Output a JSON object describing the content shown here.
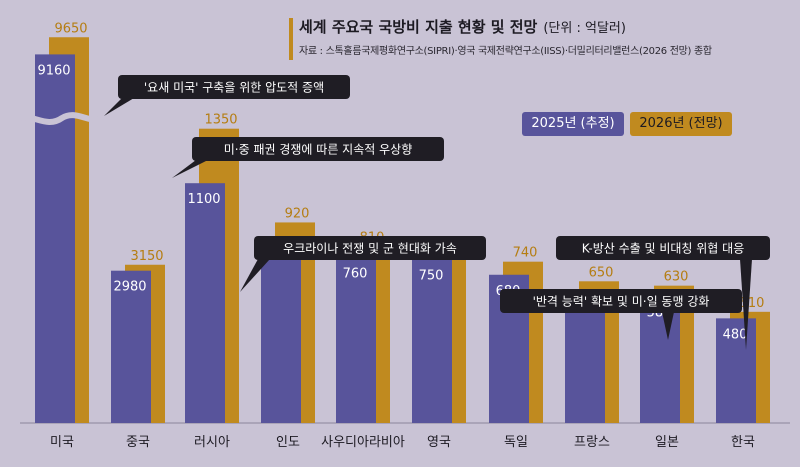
{
  "title": "세계 주요국 국방비 지출 현황 및 전망",
  "unit": "(단위 : 억달러)",
  "source": "자료 : 스톡홀름국제평화연구소(SIPRI)·영국 국제전략연구소(IISS)·더밀리터리밸런스(2026 전망) 종합",
  "colors": {
    "s2025": "#58549b",
    "s2026": "#c08a1f",
    "callout_bg": "#1f1d24",
    "callout_text": "#ffffff"
  },
  "chart_data": {
    "type": "bar",
    "categories": [
      "미국",
      "중국",
      "러시아",
      "인도",
      "사우디아라비아",
      "영국",
      "독일",
      "프랑스",
      "일본",
      "한국"
    ],
    "series": [
      {
        "name": "2025년 (추정)",
        "values": [
          9160,
          2980,
          1100,
          840,
          760,
          750,
          680,
          610,
          580,
          480
        ]
      },
      {
        "name": "2026년 (전망)",
        "values": [
          9650,
          3150,
          1350,
          920,
          810,
          790,
          740,
          650,
          630,
          510
        ]
      }
    ],
    "y_axis_break": true,
    "legend_position": "top-right",
    "annotations": [
      {
        "category": "미국",
        "text": "'요새 미국' 구축을 위한 압도적 증액"
      },
      {
        "category": "중국",
        "text": "미·중 패권 경쟁에 따른 지속적 우상향"
      },
      {
        "category": "러시아",
        "text": "우크라이나 전쟁 및 군 현대화 가속"
      },
      {
        "category": "한국",
        "text": "K-방산 수출 및 비대칭 위협 대응"
      },
      {
        "category": "일본",
        "text": "'반격 능력' 확보 및 미·일 동맹 강화"
      }
    ]
  }
}
